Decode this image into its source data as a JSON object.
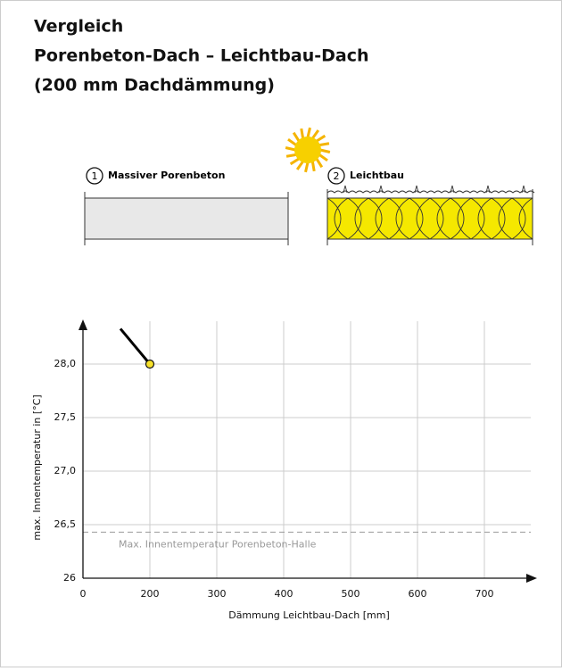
{
  "header": {
    "title_lines": [
      "Vergleich",
      "Porenbeton-Dach – Leichtbau-Dach",
      "(200 mm Dachdämmung)"
    ]
  },
  "diagrams": [
    {
      "number": "1",
      "label": "Massiver Porenbeton"
    },
    {
      "number": "2",
      "label": "Leichtbau"
    }
  ],
  "chart_data": {
    "type": "line",
    "x_label": "Dämmung Leichtbau-Dach [mm]",
    "y_label": "max. Innentemperatur in [°C]",
    "x": [
      156,
      176,
      200
    ],
    "series": [
      {
        "color": "#000000",
        "values": [
          28.33,
          28.18,
          28.0
        ]
      }
    ],
    "marker_last": true,
    "marker_color": "#f7e12b",
    "xlim": [
      0,
      776
    ],
    "x_break": [
      0,
      100
    ],
    "xticks": [
      0,
      200,
      300,
      400,
      500,
      600,
      700
    ],
    "ylim": [
      26,
      28.4
    ],
    "yticks": [
      26,
      {
        "value": 26.5,
        "label": "26,5"
      },
      {
        "value": 27,
        "label": "27,0"
      },
      {
        "value": 27.5,
        "label": "27,5"
      },
      {
        "value": 28,
        "label": "28,0"
      }
    ],
    "grid": true,
    "reference_line": {
      "value": 26.43,
      "label": "Max. Innentemperatur Porenbeton-Halle",
      "color": "#999999"
    }
  }
}
